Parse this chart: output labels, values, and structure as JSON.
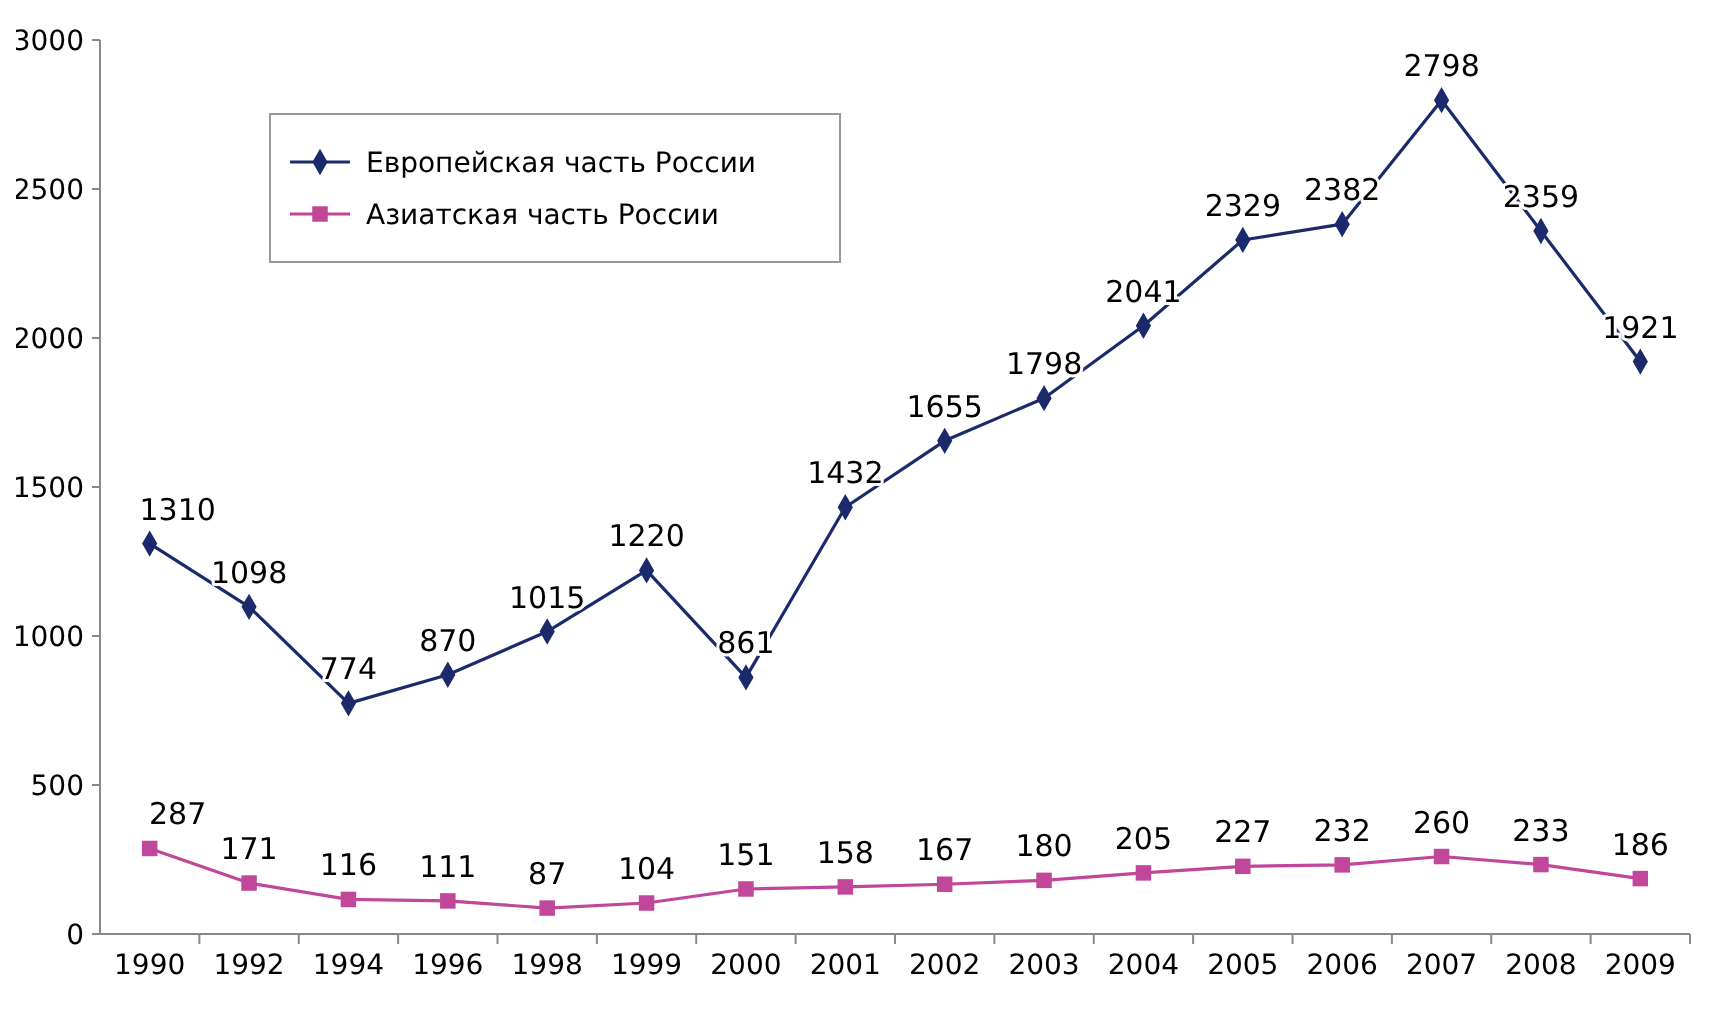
{
  "chart_data": {
    "type": "line",
    "categories": [
      "1990",
      "1992",
      "1994",
      "1996",
      "1998",
      "1999",
      "2000",
      "2001",
      "2002",
      "2003",
      "2004",
      "2005",
      "2006",
      "2007",
      "2008",
      "2009"
    ],
    "series": [
      {
        "name": "Европейская часть России",
        "color": "#1b2a6b",
        "marker": "diamond",
        "values": [
          1310,
          1098,
          774,
          870,
          1015,
          1220,
          861,
          1432,
          1655,
          1798,
          2041,
          2329,
          2382,
          2798,
          2359,
          1921
        ]
      },
      {
        "name": "Азиатская часть России",
        "color": "#c0479a",
        "marker": "square",
        "values": [
          287,
          171,
          116,
          111,
          87,
          104,
          151,
          158,
          167,
          180,
          205,
          227,
          232,
          260,
          233,
          186
        ]
      }
    ],
    "ylim": [
      0,
      3000
    ],
    "yticks": [
      0,
      500,
      1000,
      1500,
      2000,
      2500,
      3000
    ],
    "data_labels": true,
    "legend": "top left",
    "grid": false,
    "line_style": "solid"
  }
}
